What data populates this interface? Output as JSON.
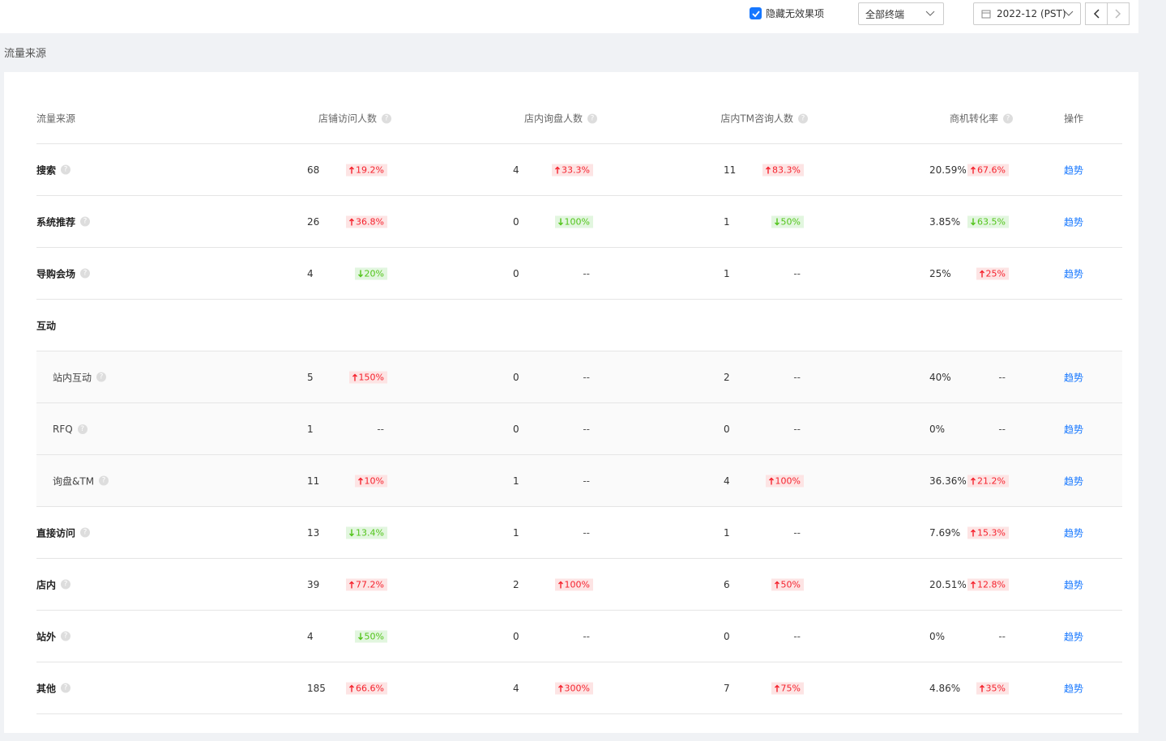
{
  "toolbar": {
    "hide_invalid": {
      "label": "隐藏无效果项",
      "checked": true
    },
    "terminal": "全部终端",
    "month": "2022-12 (PST)"
  },
  "section_title": "流量来源",
  "table": {
    "columns": [
      {
        "label": "流量来源",
        "help": false
      },
      {
        "label": "店铺访问人数",
        "help": true
      },
      {
        "label": "店内询盘人数",
        "help": true
      },
      {
        "label": "店内TM咨询人数",
        "help": true
      },
      {
        "label": "商机转化率",
        "help": true
      },
      {
        "label": "操作",
        "help": false
      }
    ],
    "rows": [
      {
        "name": "搜索",
        "level": "top",
        "help": true,
        "cells": [
          {
            "value": "68",
            "change": "19.2%",
            "trend": "up"
          },
          {
            "value": "4",
            "change": "33.3%",
            "trend": "up"
          },
          {
            "value": "11",
            "change": "83.3%",
            "trend": "up"
          },
          {
            "value": "20.59%",
            "change": "67.6%",
            "trend": "up"
          }
        ],
        "action": "趋势"
      },
      {
        "name": "系统推荐",
        "level": "top",
        "help": true,
        "cells": [
          {
            "value": "26",
            "change": "36.8%",
            "trend": "up"
          },
          {
            "value": "0",
            "change": "100%",
            "trend": "down"
          },
          {
            "value": "1",
            "change": "50%",
            "trend": "down"
          },
          {
            "value": "3.85%",
            "change": "63.5%",
            "trend": "down"
          }
        ],
        "action": "趋势"
      },
      {
        "name": "导购会场",
        "level": "top",
        "help": true,
        "cells": [
          {
            "value": "4",
            "change": "20%",
            "trend": "down"
          },
          {
            "value": "0",
            "change": "--"
          },
          {
            "value": "1",
            "change": "--"
          },
          {
            "value": "25%",
            "change": "25%",
            "trend": "up"
          }
        ],
        "action": "趋势"
      },
      {
        "name": "互动",
        "level": "group",
        "help": false
      },
      {
        "name": "站内互动",
        "level": "child",
        "help": true,
        "cells": [
          {
            "value": "5",
            "change": "150%",
            "trend": "up"
          },
          {
            "value": "0",
            "change": "--"
          },
          {
            "value": "2",
            "change": "--"
          },
          {
            "value": "40%",
            "change": "--"
          }
        ],
        "action": "趋势"
      },
      {
        "name": "RFQ",
        "level": "child",
        "help": true,
        "cells": [
          {
            "value": "1",
            "change": "--"
          },
          {
            "value": "0",
            "change": "--"
          },
          {
            "value": "0",
            "change": "--"
          },
          {
            "value": "0%",
            "change": "--"
          }
        ],
        "action": "趋势"
      },
      {
        "name": "询盘&TM",
        "level": "child",
        "help": true,
        "cells": [
          {
            "value": "11",
            "change": "10%",
            "trend": "up"
          },
          {
            "value": "1",
            "change": "--"
          },
          {
            "value": "4",
            "change": "100%",
            "trend": "up"
          },
          {
            "value": "36.36%",
            "change": "21.2%",
            "trend": "up"
          }
        ],
        "action": "趋势"
      },
      {
        "name": "直接访问",
        "level": "top",
        "help": true,
        "cells": [
          {
            "value": "13",
            "change": "13.4%",
            "trend": "down"
          },
          {
            "value": "1",
            "change": "--"
          },
          {
            "value": "1",
            "change": "--"
          },
          {
            "value": "7.69%",
            "change": "15.3%",
            "trend": "up"
          }
        ],
        "action": "趋势"
      },
      {
        "name": "店内",
        "level": "top",
        "help": true,
        "cells": [
          {
            "value": "39",
            "change": "77.2%",
            "trend": "up"
          },
          {
            "value": "2",
            "change": "100%",
            "trend": "up"
          },
          {
            "value": "6",
            "change": "50%",
            "trend": "up"
          },
          {
            "value": "20.51%",
            "change": "12.8%",
            "trend": "up"
          }
        ],
        "action": "趋势"
      },
      {
        "name": "站外",
        "level": "top",
        "help": true,
        "cells": [
          {
            "value": "4",
            "change": "50%",
            "trend": "down"
          },
          {
            "value": "0",
            "change": "--"
          },
          {
            "value": "0",
            "change": "--"
          },
          {
            "value": "0%",
            "change": "--"
          }
        ],
        "action": "趋势"
      },
      {
        "name": "其他",
        "level": "top",
        "help": true,
        "cells": [
          {
            "value": "185",
            "change": "66.6%",
            "trend": "up"
          },
          {
            "value": "4",
            "change": "300%",
            "trend": "up"
          },
          {
            "value": "7",
            "change": "75%",
            "trend": "up"
          },
          {
            "value": "4.86%",
            "change": "35%",
            "trend": "up"
          }
        ],
        "action": "趋势"
      }
    ]
  }
}
